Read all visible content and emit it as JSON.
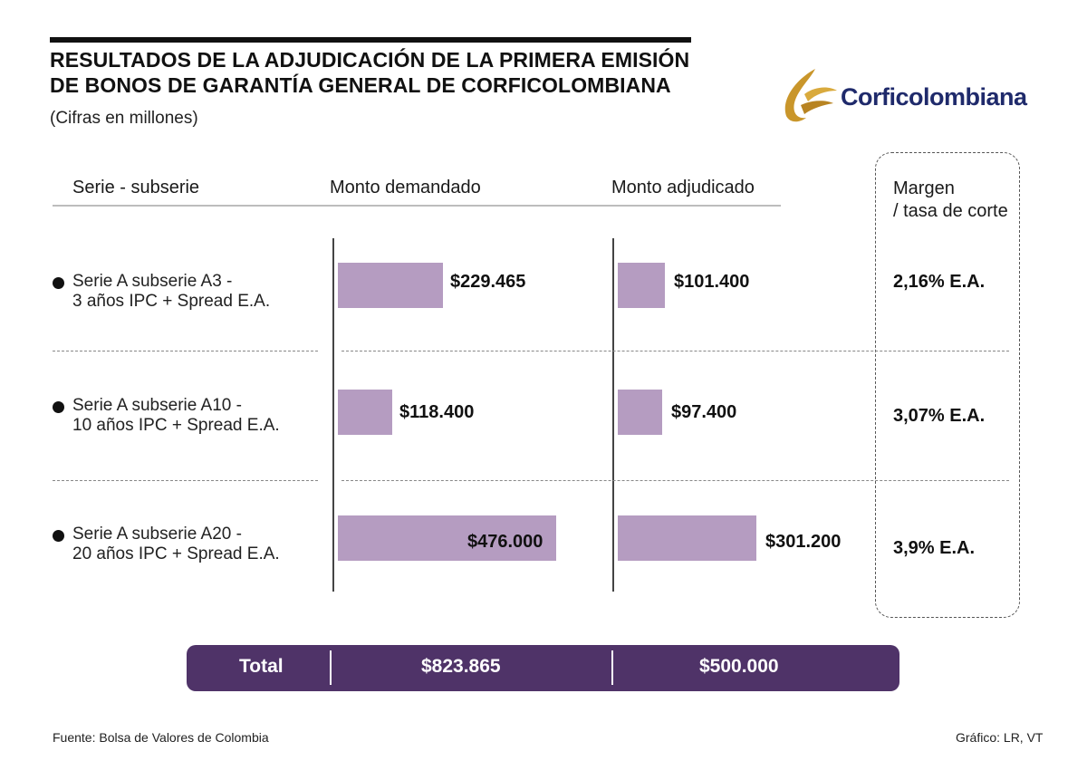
{
  "title_line1": "RESULTADOS DE LA ADJUDICACIÓN DE LA PRIMERA EMISIÓN",
  "title_line2": "DE BONOS DE GARANTÍA GENERAL DE CORFICOLOMBIANA",
  "subtitle": "(Cifras en millones)",
  "logo_text": "Corficolombiana",
  "headers": {
    "serie": "Serie - subserie",
    "demandado": "Monto demandado",
    "adjudicado": "Monto adjudicado",
    "margen_line1": "Margen",
    "margen_line2": "/ tasa de corte"
  },
  "rows": [
    {
      "label1": "Serie A subserie A3 -",
      "label2": "3 años IPC + Spread E.A.",
      "demandado_label": "$229.465",
      "adjudicado_label": "$101.400",
      "margen": "2,16% E.A."
    },
    {
      "label1": "Serie A subserie A10 -",
      "label2": "10 años IPC + Spread E.A.",
      "demandado_label": "$118.400",
      "adjudicado_label": "$97.400",
      "margen": "3,07% E.A."
    },
    {
      "label1": "Serie A subserie A20 -",
      "label2": "20 años IPC + Spread E.A.",
      "demandado_label": "$476.000",
      "adjudicado_label": "$301.200",
      "margen": "3,9% E.A."
    }
  ],
  "total": {
    "label": "Total",
    "demandado": "$823.865",
    "adjudicado": "$500.000"
  },
  "footer": {
    "source": "Fuente: Bolsa de Valores de Colombia",
    "credit": "Gráfico: LR, VT"
  },
  "colors": {
    "bar": "#b59cc1",
    "total_bg": "#4f3368",
    "logo_blue": "#1f2a6b",
    "logo_gold": "#c9962b"
  },
  "chart_data": {
    "type": "bar",
    "orientation": "horizontal",
    "units": "millones",
    "categories": [
      "Serie A subserie A3",
      "Serie A subserie A10",
      "Serie A subserie A20"
    ],
    "series": [
      {
        "name": "Monto demandado",
        "values": [
          229465,
          118400,
          476000
        ]
      },
      {
        "name": "Monto adjudicado",
        "values": [
          101400,
          97400,
          301200
        ]
      }
    ],
    "margen": [
      "2,16% E.A.",
      "3,07% E.A.",
      "3,9% E.A."
    ],
    "total": {
      "Monto demandado": 823865,
      "Monto adjudicado": 500000
    }
  }
}
